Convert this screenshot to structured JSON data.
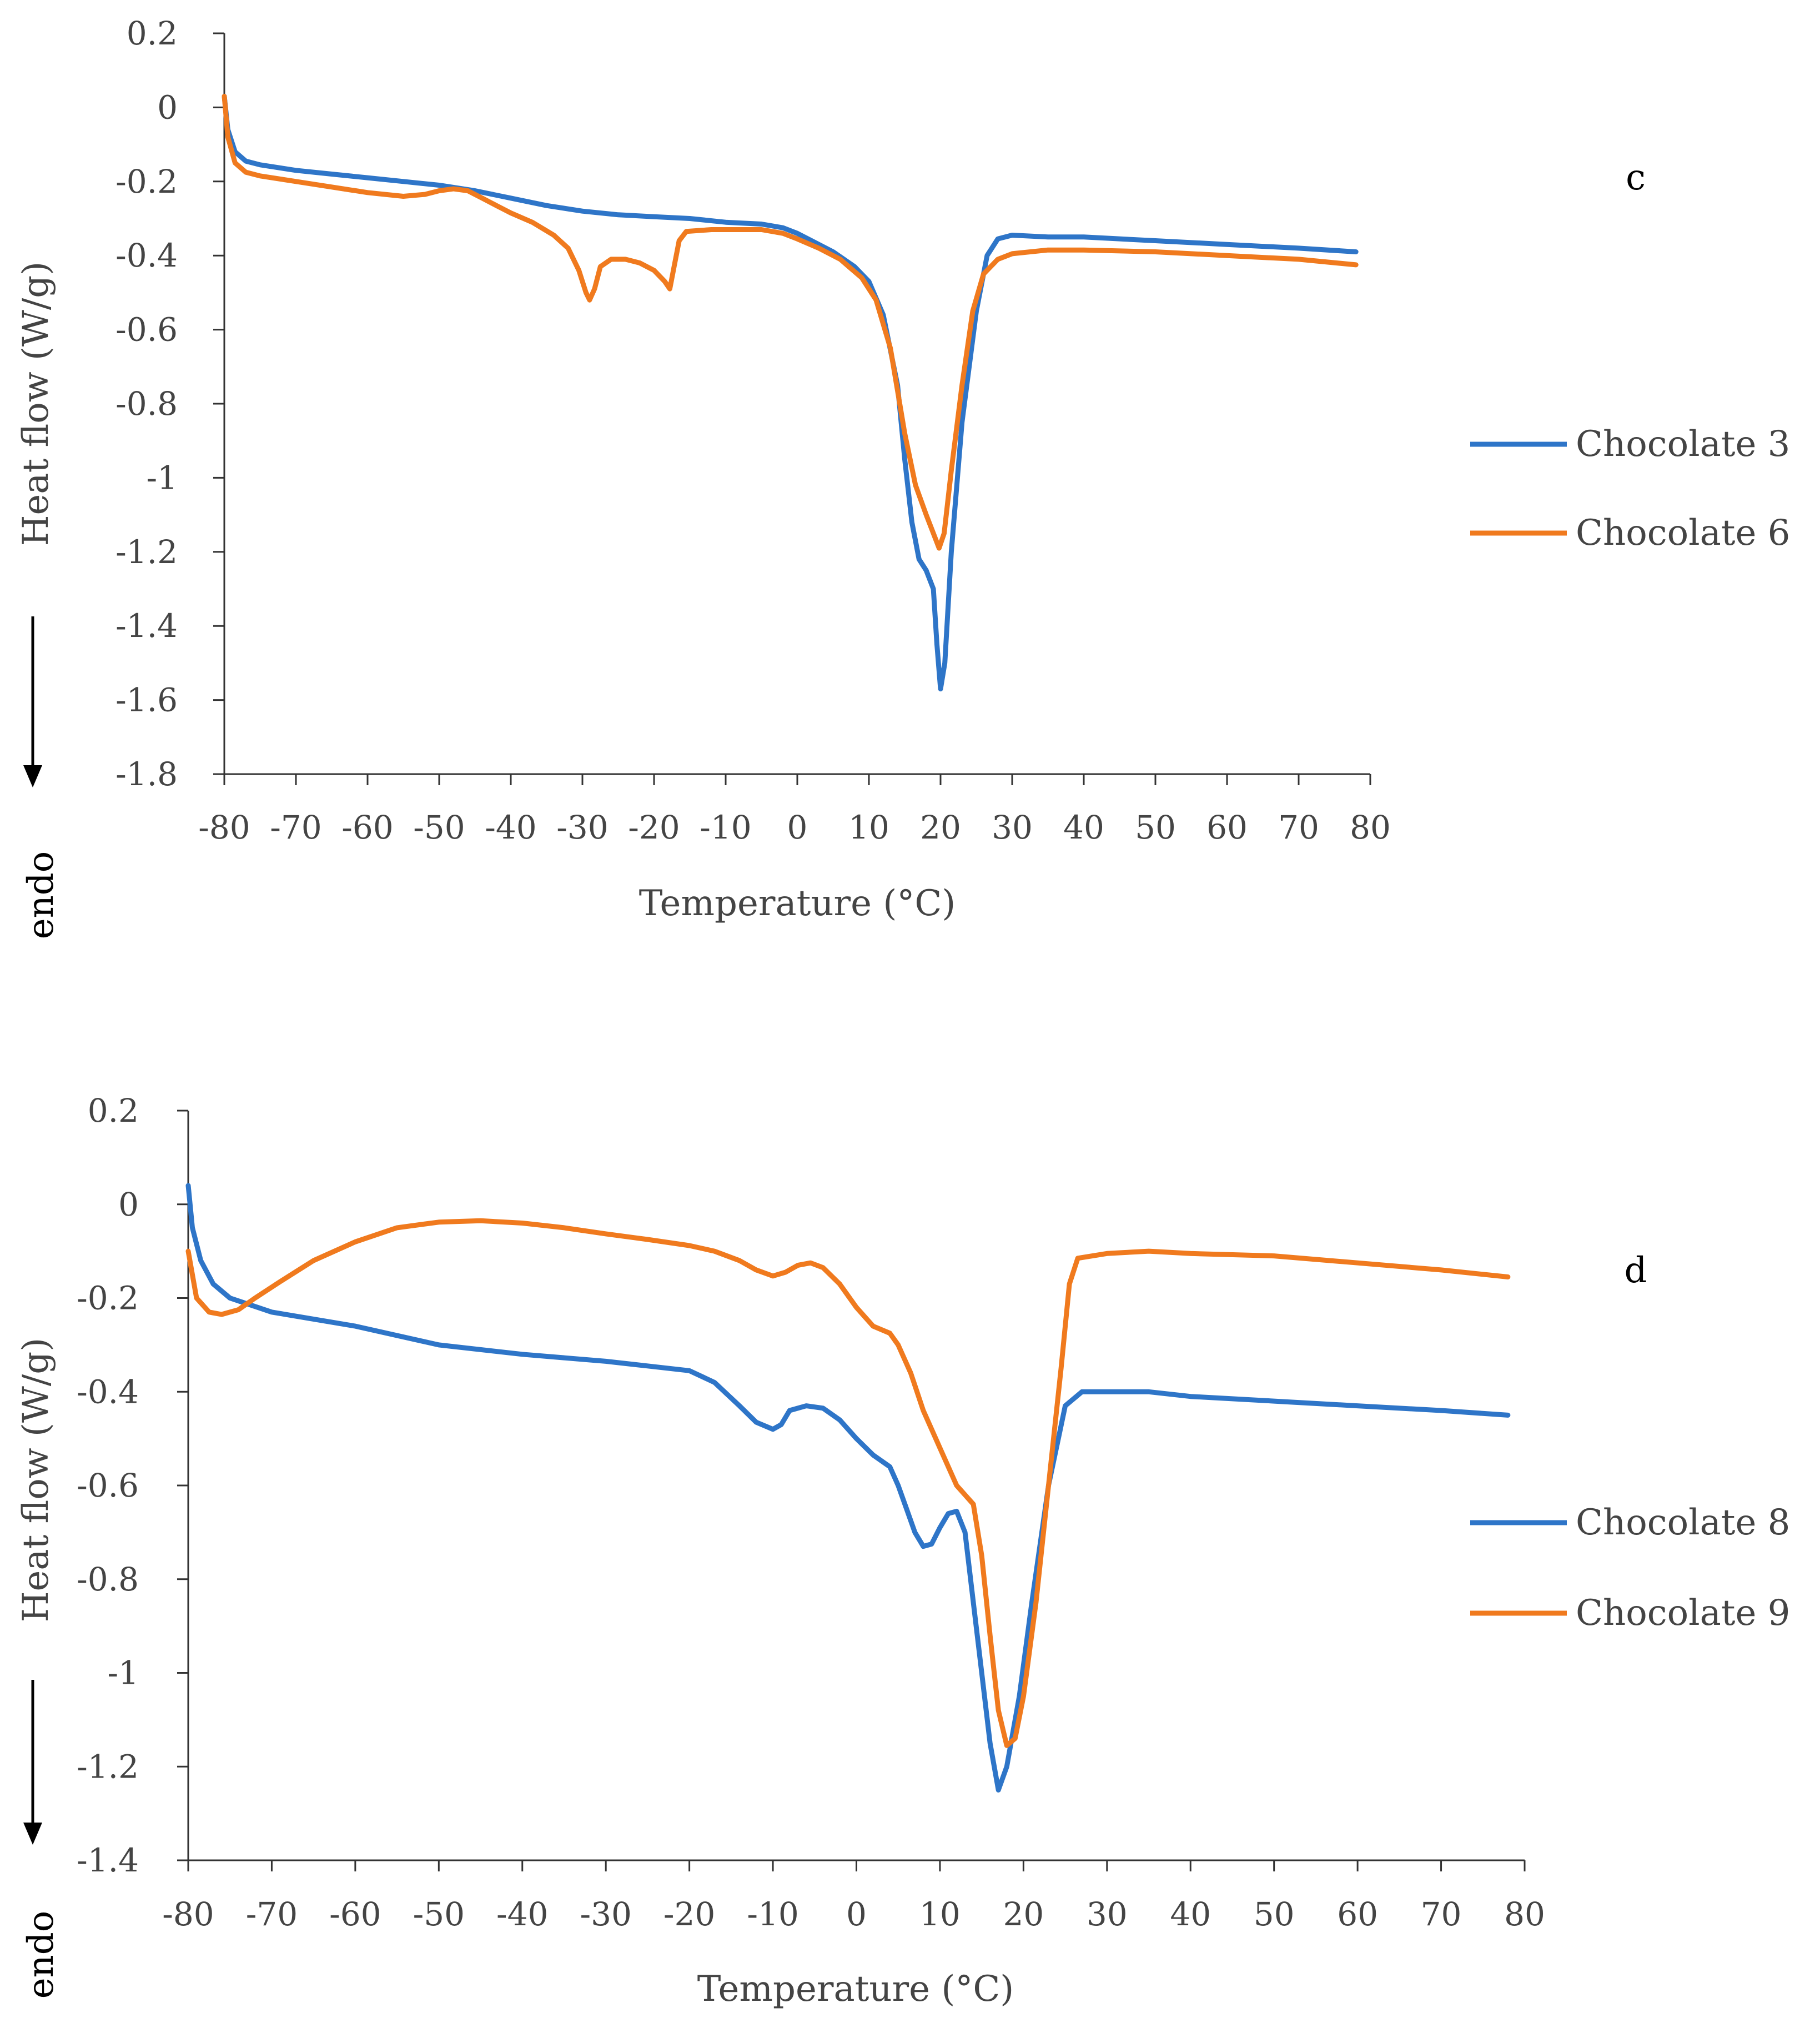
{
  "chart_data": [
    {
      "type": "line",
      "panel_label": "c",
      "xlabel": "Temperature (°C)",
      "ylabel": "Heat flow (W/g)",
      "direction_label": "endo",
      "xlim": [
        -80,
        80
      ],
      "ylim": [
        -1.8,
        0.2
      ],
      "x_ticks": [
        -80,
        -70,
        -60,
        -50,
        -40,
        -30,
        -20,
        -10,
        0,
        10,
        20,
        30,
        40,
        50,
        60,
        70,
        80
      ],
      "y_ticks": [
        0.2,
        0,
        -0.2,
        -0.4,
        -0.6,
        -0.8,
        -1,
        -1.2,
        -1.4,
        -1.6,
        -1.8
      ],
      "legend_position": "right",
      "series": [
        {
          "name": "Chocolate 3",
          "color": "#2E75C8",
          "points": [
            [
              -80,
              0.03
            ],
            [
              -79.5,
              -0.06
            ],
            [
              -78.5,
              -0.12
            ],
            [
              -77,
              -0.145
            ],
            [
              -75,
              -0.155
            ],
            [
              -70,
              -0.17
            ],
            [
              -65,
              -0.18
            ],
            [
              -60,
              -0.19
            ],
            [
              -55,
              -0.2
            ],
            [
              -50,
              -0.21
            ],
            [
              -45,
              -0.225
            ],
            [
              -40,
              -0.245
            ],
            [
              -35,
              -0.265
            ],
            [
              -30,
              -0.28
            ],
            [
              -25,
              -0.29
            ],
            [
              -20,
              -0.295
            ],
            [
              -15,
              -0.3
            ],
            [
              -10,
              -0.31
            ],
            [
              -5,
              -0.315
            ],
            [
              -2,
              -0.325
            ],
            [
              0,
              -0.34
            ],
            [
              2,
              -0.36
            ],
            [
              5,
              -0.39
            ],
            [
              8,
              -0.43
            ],
            [
              10,
              -0.47
            ],
            [
              12,
              -0.56
            ],
            [
              14,
              -0.75
            ],
            [
              15,
              -0.95
            ],
            [
              16,
              -1.12
            ],
            [
              17,
              -1.22
            ],
            [
              18,
              -1.25
            ],
            [
              19,
              -1.3
            ],
            [
              19.5,
              -1.45
            ],
            [
              20,
              -1.57
            ],
            [
              20.6,
              -1.5
            ],
            [
              21.5,
              -1.2
            ],
            [
              23,
              -0.85
            ],
            [
              25,
              -0.55
            ],
            [
              26.5,
              -0.4
            ],
            [
              28,
              -0.355
            ],
            [
              30,
              -0.345
            ],
            [
              35,
              -0.35
            ],
            [
              40,
              -0.35
            ],
            [
              50,
              -0.36
            ],
            [
              60,
              -0.37
            ],
            [
              70,
              -0.38
            ],
            [
              78,
              -0.39
            ]
          ]
        },
        {
          "name": "Chocolate 6",
          "color": "#F07A1E",
          "points": [
            [
              -80,
              0.03
            ],
            [
              -79.5,
              -0.08
            ],
            [
              -78.5,
              -0.15
            ],
            [
              -77,
              -0.175
            ],
            [
              -75,
              -0.185
            ],
            [
              -70,
              -0.2
            ],
            [
              -65,
              -0.215
            ],
            [
              -60,
              -0.23
            ],
            [
              -55,
              -0.24
            ],
            [
              -52,
              -0.235
            ],
            [
              -50,
              -0.225
            ],
            [
              -48,
              -0.22
            ],
            [
              -46,
              -0.225
            ],
            [
              -44,
              -0.245
            ],
            [
              -42,
              -0.265
            ],
            [
              -40,
              -0.285
            ],
            [
              -37,
              -0.31
            ],
            [
              -34,
              -0.345
            ],
            [
              -32,
              -0.38
            ],
            [
              -30.5,
              -0.44
            ],
            [
              -29.5,
              -0.5
            ],
            [
              -29,
              -0.52
            ],
            [
              -28.3,
              -0.49
            ],
            [
              -27.5,
              -0.43
            ],
            [
              -26,
              -0.41
            ],
            [
              -24,
              -0.41
            ],
            [
              -22,
              -0.42
            ],
            [
              -20,
              -0.44
            ],
            [
              -18.5,
              -0.47
            ],
            [
              -17.8,
              -0.49
            ],
            [
              -17.2,
              -0.43
            ],
            [
              -16.5,
              -0.36
            ],
            [
              -15.5,
              -0.335
            ],
            [
              -12,
              -0.33
            ],
            [
              -8,
              -0.33
            ],
            [
              -5,
              -0.33
            ],
            [
              -2,
              -0.34
            ],
            [
              0,
              -0.355
            ],
            [
              3,
              -0.38
            ],
            [
              6,
              -0.41
            ],
            [
              9,
              -0.46
            ],
            [
              11,
              -0.52
            ],
            [
              13,
              -0.65
            ],
            [
              15,
              -0.88
            ],
            [
              16.5,
              -1.02
            ],
            [
              18,
              -1.1
            ],
            [
              19,
              -1.15
            ],
            [
              19.8,
              -1.19
            ],
            [
              20.5,
              -1.15
            ],
            [
              21.5,
              -0.98
            ],
            [
              23,
              -0.75
            ],
            [
              24.5,
              -0.55
            ],
            [
              26,
              -0.45
            ],
            [
              28,
              -0.41
            ],
            [
              30,
              -0.395
            ],
            [
              35,
              -0.385
            ],
            [
              40,
              -0.385
            ],
            [
              50,
              -0.39
            ],
            [
              60,
              -0.4
            ],
            [
              70,
              -0.41
            ],
            [
              78,
              -0.425
            ]
          ]
        }
      ]
    },
    {
      "type": "line",
      "panel_label": "d",
      "xlabel": "Temperature (°C)",
      "ylabel": "Heat flow (W/g)",
      "direction_label": "endo",
      "xlim": [
        -80,
        80
      ],
      "ylim": [
        -1.4,
        0.2
      ],
      "x_ticks": [
        -80,
        -70,
        -60,
        -50,
        -40,
        -30,
        -20,
        -10,
        0,
        10,
        20,
        30,
        40,
        50,
        60,
        70,
        80
      ],
      "y_ticks": [
        0.2,
        0,
        -0.2,
        -0.4,
        -0.6,
        -0.8,
        -1,
        -1.2,
        -1.4
      ],
      "legend_position": "right",
      "series": [
        {
          "name": "Chocolate 8",
          "color": "#2E75C8",
          "points": [
            [
              -80,
              0.04
            ],
            [
              -79.5,
              -0.05
            ],
            [
              -78.5,
              -0.12
            ],
            [
              -77,
              -0.17
            ],
            [
              -75,
              -0.2
            ],
            [
              -70,
              -0.23
            ],
            [
              -60,
              -0.26
            ],
            [
              -50,
              -0.3
            ],
            [
              -40,
              -0.32
            ],
            [
              -30,
              -0.335
            ],
            [
              -25,
              -0.345
            ],
            [
              -20,
              -0.355
            ],
            [
              -17,
              -0.38
            ],
            [
              -14,
              -0.43
            ],
            [
              -12,
              -0.465
            ],
            [
              -10,
              -0.48
            ],
            [
              -9,
              -0.47
            ],
            [
              -8,
              -0.44
            ],
            [
              -6,
              -0.43
            ],
            [
              -4,
              -0.435
            ],
            [
              -2,
              -0.46
            ],
            [
              0,
              -0.5
            ],
            [
              2,
              -0.535
            ],
            [
              4,
              -0.56
            ],
            [
              5,
              -0.6
            ],
            [
              6,
              -0.65
            ],
            [
              7,
              -0.7
            ],
            [
              8,
              -0.73
            ],
            [
              9,
              -0.725
            ],
            [
              10,
              -0.69
            ],
            [
              11,
              -0.66
            ],
            [
              12,
              -0.655
            ],
            [
              13,
              -0.7
            ],
            [
              14,
              -0.85
            ],
            [
              15,
              -1.0
            ],
            [
              16,
              -1.15
            ],
            [
              17,
              -1.25
            ],
            [
              18,
              -1.2
            ],
            [
              19.5,
              -1.05
            ],
            [
              21,
              -0.85
            ],
            [
              23,
              -0.6
            ],
            [
              25,
              -0.43
            ],
            [
              27,
              -0.4
            ],
            [
              30,
              -0.4
            ],
            [
              35,
              -0.4
            ],
            [
              40,
              -0.41
            ],
            [
              50,
              -0.42
            ],
            [
              60,
              -0.43
            ],
            [
              70,
              -0.44
            ],
            [
              78,
              -0.45
            ]
          ]
        },
        {
          "name": "Chocolate 9",
          "color": "#F07A1E",
          "points": [
            [
              -80,
              -0.1
            ],
            [
              -79,
              -0.2
            ],
            [
              -77.5,
              -0.23
            ],
            [
              -76,
              -0.235
            ],
            [
              -74,
              -0.225
            ],
            [
              -72,
              -0.2
            ],
            [
              -69,
              -0.165
            ],
            [
              -65,
              -0.12
            ],
            [
              -60,
              -0.08
            ],
            [
              -55,
              -0.05
            ],
            [
              -50,
              -0.038
            ],
            [
              -45,
              -0.035
            ],
            [
              -40,
              -0.04
            ],
            [
              -35,
              -0.05
            ],
            [
              -30,
              -0.063
            ],
            [
              -25,
              -0.075
            ],
            [
              -20,
              -0.088
            ],
            [
              -17,
              -0.1
            ],
            [
              -14,
              -0.12
            ],
            [
              -12,
              -0.14
            ],
            [
              -10,
              -0.153
            ],
            [
              -8.5,
              -0.145
            ],
            [
              -7,
              -0.13
            ],
            [
              -5.5,
              -0.125
            ],
            [
              -4,
              -0.135
            ],
            [
              -2,
              -0.17
            ],
            [
              0,
              -0.22
            ],
            [
              2,
              -0.26
            ],
            [
              4,
              -0.275
            ],
            [
              5,
              -0.3
            ],
            [
              6.5,
              -0.36
            ],
            [
              8,
              -0.44
            ],
            [
              10,
              -0.52
            ],
            [
              12,
              -0.6
            ],
            [
              14,
              -0.64
            ],
            [
              15,
              -0.75
            ],
            [
              16,
              -0.92
            ],
            [
              17,
              -1.08
            ],
            [
              18,
              -1.155
            ],
            [
              19,
              -1.14
            ],
            [
              20,
              -1.05
            ],
            [
              21.5,
              -0.85
            ],
            [
              23,
              -0.6
            ],
            [
              24.5,
              -0.35
            ],
            [
              25.5,
              -0.17
            ],
            [
              26.5,
              -0.115
            ],
            [
              30,
              -0.105
            ],
            [
              35,
              -0.1
            ],
            [
              40,
              -0.105
            ],
            [
              50,
              -0.11
            ],
            [
              60,
              -0.125
            ],
            [
              70,
              -0.14
            ],
            [
              78,
              -0.155
            ]
          ]
        }
      ]
    }
  ]
}
